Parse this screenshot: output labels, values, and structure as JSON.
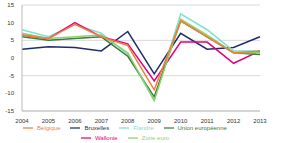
{
  "chart_data": {
    "type": "line",
    "categories": [
      "2004",
      "2005",
      "2006",
      "2007",
      "2008",
      "2009",
      "2010",
      "2011",
      "2012",
      "2013"
    ],
    "series": [
      {
        "name": "Bruxelles",
        "color": "#1f2d6b",
        "values": [
          2.5,
          3.2,
          3,
          2,
          7.5,
          -4.5,
          7,
          2.5,
          3,
          6
        ]
      },
      {
        "name": "Flandre",
        "color": "#7fe0d0",
        "values": [
          8,
          6,
          9.5,
          7,
          1,
          -12,
          12.5,
          8,
          2,
          2
        ]
      },
      {
        "name": "Wallonie",
        "color": "#e6007e",
        "values": [
          6.5,
          5.5,
          10,
          6,
          4,
          -6.5,
          4.5,
          4.5,
          -1.5,
          2
        ]
      },
      {
        "name": "Union européenne",
        "color": "#3a7d44",
        "values": [
          6,
          5,
          5.5,
          6,
          0.5,
          -11,
          10.5,
          6,
          1.5,
          1
        ]
      },
      {
        "name": "Zone euro",
        "color": "#8fd16a",
        "values": [
          7,
          5.5,
          6,
          6.5,
          1.5,
          -12,
          11,
          6.5,
          1.5,
          1.5
        ]
      },
      {
        "name": "Belgique",
        "color": "#f07f3c",
        "values": [
          6.5,
          5.5,
          9.5,
          6,
          3.5,
          -9,
          10.5,
          6,
          1.5,
          2
        ]
      }
    ],
    "ylim": [
      -15,
      15
    ],
    "yticks": [
      -15,
      -10,
      -5,
      0,
      5,
      10,
      15
    ],
    "grid": true,
    "legend": "bottom"
  }
}
